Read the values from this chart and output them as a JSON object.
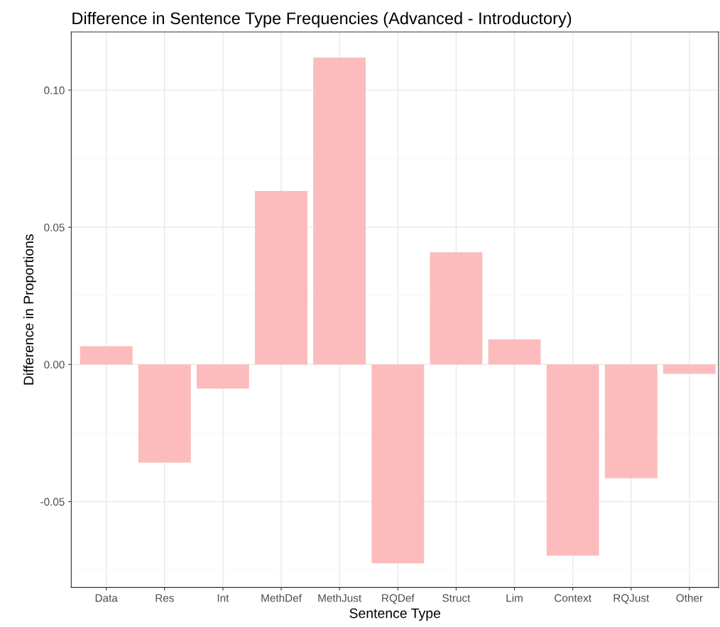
{
  "chart_data": {
    "type": "bar",
    "title": "Difference in Sentence Type Frequencies (Advanced - Introductory)",
    "xlabel": "Sentence Type",
    "ylabel": "Difference in Proportions",
    "categories": [
      "Data",
      "Res",
      "Int",
      "MethDef",
      "MethJust",
      "RQDef",
      "Struct",
      "Lim",
      "Context",
      "RQJust",
      "Other"
    ],
    "values": [
      0.0067,
      -0.0358,
      -0.0088,
      0.0632,
      0.1119,
      -0.0725,
      0.0409,
      0.0091,
      -0.0697,
      -0.0415,
      -0.0034
    ],
    "color": "#fcbcbe",
    "ylim": [
      -0.0813,
      0.1212
    ],
    "yticks": [
      {
        "value": -0.05,
        "label": "-0.05"
      },
      {
        "value": 0.0,
        "label": "0.00"
      },
      {
        "value": 0.05,
        "label": "0.05"
      },
      {
        "value": 0.1,
        "label": "0.10"
      }
    ],
    "grid": true
  }
}
